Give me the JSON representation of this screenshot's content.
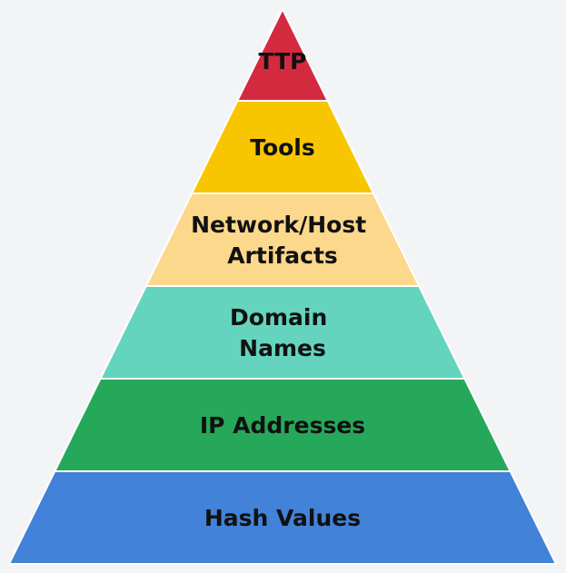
{
  "pyramid": {
    "tiers": [
      {
        "label_lines": [
          "TTP"
        ],
        "color": "#d42a40"
      },
      {
        "label_lines": [
          "Tools"
        ],
        "color": "#f7c600"
      },
      {
        "label_lines": [
          "Network/Host",
          "Artifacts"
        ],
        "color": "#fbd88c"
      },
      {
        "label_lines": [
          "Domain",
          "Names"
        ],
        "color": "#64d4bf"
      },
      {
        "label_lines": [
          "IP Addresses"
        ],
        "color": "#26a85a"
      },
      {
        "label_lines": [
          "Hash Values"
        ],
        "color": "#4282d8"
      }
    ],
    "background": "#f3f4f6",
    "separator_color": "#ffffff"
  }
}
